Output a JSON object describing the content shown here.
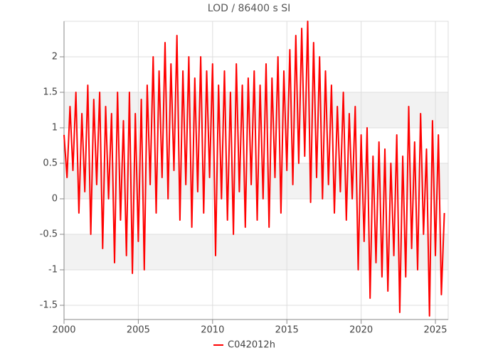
{
  "chart_data": {
    "type": "line",
    "title": "LOD / 86400 s SI",
    "x": [
      2000.0,
      2000.2,
      2000.4,
      2000.6,
      2000.8,
      2001.0,
      2001.2,
      2001.4,
      2001.6,
      2001.8,
      2002.0,
      2002.2,
      2002.4,
      2002.6,
      2002.8,
      2003.0,
      2003.2,
      2003.4,
      2003.6,
      2003.8,
      2004.0,
      2004.2,
      2004.4,
      2004.6,
      2004.8,
      2005.0,
      2005.2,
      2005.4,
      2005.6,
      2005.8,
      2006.0,
      2006.2,
      2006.4,
      2006.6,
      2006.8,
      2007.0,
      2007.2,
      2007.4,
      2007.6,
      2007.8,
      2008.0,
      2008.2,
      2008.4,
      2008.6,
      2008.8,
      2009.0,
      2009.2,
      2009.4,
      2009.6,
      2009.8,
      2010.0,
      2010.2,
      2010.4,
      2010.6,
      2010.8,
      2011.0,
      2011.2,
      2011.4,
      2011.6,
      2011.8,
      2012.0,
      2012.2,
      2012.4,
      2012.6,
      2012.8,
      2013.0,
      2013.2,
      2013.4,
      2013.6,
      2013.8,
      2014.0,
      2014.2,
      2014.4,
      2014.6,
      2014.8,
      2015.0,
      2015.2,
      2015.4,
      2015.6,
      2015.8,
      2016.0,
      2016.2,
      2016.4,
      2016.6,
      2016.8,
      2017.0,
      2017.2,
      2017.4,
      2017.6,
      2017.8,
      2018.0,
      2018.2,
      2018.4,
      2018.6,
      2018.8,
      2019.0,
      2019.2,
      2019.4,
      2019.6,
      2019.8,
      2020.0,
      2020.2,
      2020.4,
      2020.6,
      2020.8,
      2021.0,
      2021.2,
      2021.4,
      2021.6,
      2021.8,
      2022.0,
      2022.2,
      2022.4,
      2022.6,
      2022.8,
      2023.0,
      2023.2,
      2023.4,
      2023.6,
      2023.8,
      2024.0,
      2024.2,
      2024.4,
      2024.6,
      2024.8,
      2025.0,
      2025.2,
      2025.4,
      2025.6
    ],
    "series": [
      {
        "name": "C042012h",
        "color": "#ff0000",
        "values": [
          0.9,
          0.3,
          1.3,
          0.4,
          1.5,
          -0.2,
          1.2,
          0.1,
          1.6,
          -0.5,
          1.4,
          0.2,
          1.5,
          -0.7,
          1.3,
          0.0,
          1.2,
          -0.9,
          1.5,
          -0.3,
          1.1,
          -0.8,
          1.5,
          -1.05,
          1.2,
          -0.6,
          1.4,
          -1.0,
          1.6,
          0.2,
          2.0,
          -0.2,
          1.8,
          0.3,
          2.2,
          0.0,
          1.9,
          0.4,
          2.3,
          -0.3,
          1.8,
          0.2,
          2.0,
          -0.4,
          1.7,
          0.1,
          2.0,
          -0.2,
          1.8,
          0.3,
          1.9,
          -0.8,
          1.6,
          0.0,
          1.8,
          -0.3,
          1.5,
          -0.5,
          1.9,
          0.1,
          1.6,
          -0.4,
          1.7,
          0.2,
          1.8,
          -0.3,
          1.6,
          0.0,
          1.9,
          -0.4,
          1.7,
          0.3,
          2.0,
          -0.2,
          1.8,
          0.4,
          2.1,
          0.2,
          2.3,
          0.5,
          2.4,
          0.6,
          2.5,
          -0.05,
          2.2,
          0.3,
          2.0,
          0.0,
          1.8,
          0.2,
          1.6,
          -0.2,
          1.3,
          0.1,
          1.5,
          -0.3,
          1.2,
          0.0,
          1.3,
          -1.0,
          0.9,
          -0.6,
          1.0,
          -1.4,
          0.6,
          -0.9,
          0.8,
          -1.1,
          0.7,
          -1.3,
          0.5,
          -0.8,
          0.9,
          -1.6,
          0.6,
          -1.1,
          1.3,
          -0.7,
          0.8,
          -1.0,
          1.2,
          -0.5,
          0.7,
          -1.65,
          1.1,
          -0.8,
          0.9,
          -1.35,
          -0.2
        ]
      }
    ],
    "xlim": [
      2000,
      2025.86
    ],
    "xticks": [
      2000,
      2005,
      2010,
      2015,
      2020,
      2025
    ],
    "ylim": [
      -1.7,
      2.5
    ],
    "yticks": [
      -1.5,
      -1,
      -0.5,
      0,
      0.5,
      1,
      1.5,
      2
    ],
    "grid": true,
    "legend": "bottom"
  }
}
